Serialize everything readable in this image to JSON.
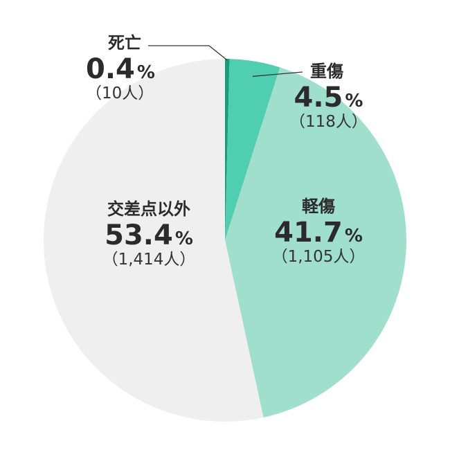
{
  "chart_data": {
    "type": "pie",
    "title": "",
    "start_angle_deg": 0,
    "direction": "clockwise",
    "slices": [
      {
        "label": "死亡",
        "percent": 0.4,
        "percent_text": "0.4",
        "unit": "%",
        "count_text": "（10人）",
        "color": "#1a9c79"
      },
      {
        "label": "重傷",
        "percent": 4.5,
        "percent_text": "4.5",
        "unit": "%",
        "count_text": "（118人）",
        "color": "#50cfb0"
      },
      {
        "label": "軽傷",
        "percent": 41.7,
        "percent_text": "41.7",
        "unit": "%",
        "count_text": "（1,105人）",
        "color": "#a0dfcc"
      },
      {
        "label": "交差点以外",
        "percent": 53.4,
        "percent_text": "53.4",
        "unit": "%",
        "count_text": "（1,414人）",
        "color": "#efefef"
      }
    ]
  }
}
